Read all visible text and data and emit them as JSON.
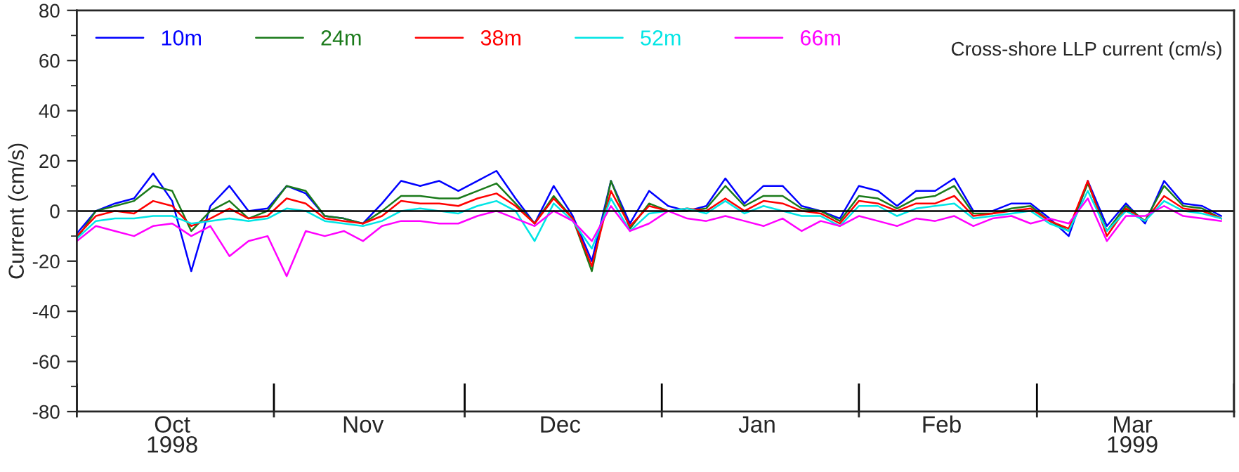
{
  "chart_data": {
    "type": "line",
    "annotations": [
      "Cross-shore LLP current (cm/s)"
    ],
    "ylabel": "Current (cm/s)",
    "x": [
      "1998-10-01",
      "1998-10-04",
      "1998-10-07",
      "1998-10-10",
      "1998-10-13",
      "1998-10-16",
      "1998-10-19",
      "1998-10-22",
      "1998-10-25",
      "1998-10-28",
      "1998-10-31",
      "1998-11-03",
      "1998-11-06",
      "1998-11-09",
      "1998-11-12",
      "1998-11-15",
      "1998-11-18",
      "1998-11-21",
      "1998-11-24",
      "1998-11-27",
      "1998-11-30",
      "1998-12-03",
      "1998-12-06",
      "1998-12-09",
      "1998-12-12",
      "1998-12-15",
      "1998-12-18",
      "1998-12-21",
      "1998-12-24",
      "1998-12-27",
      "1998-12-30",
      "1999-01-02",
      "1999-01-05",
      "1999-01-08",
      "1999-01-11",
      "1999-01-14",
      "1999-01-17",
      "1999-01-20",
      "1999-01-23",
      "1999-01-26",
      "1999-01-29",
      "1999-02-01",
      "1999-02-04",
      "1999-02-07",
      "1999-02-10",
      "1999-02-13",
      "1999-02-16",
      "1999-02-19",
      "1999-02-22",
      "1999-02-25",
      "1999-02-28",
      "1999-03-03",
      "1999-03-06",
      "1999-03-09",
      "1999-03-12",
      "1999-03-15",
      "1999-03-18",
      "1999-03-21",
      "1999-03-24",
      "1999-03-27",
      "1999-03-30"
    ],
    "series": [
      {
        "name": "10m",
        "color": "#0000ff",
        "values": [
          -9,
          0,
          3,
          5,
          15,
          4,
          -24,
          2,
          10,
          0,
          1,
          10,
          7,
          -2,
          -3,
          -5,
          3,
          12,
          10,
          12,
          8,
          12,
          16,
          5,
          -5,
          10,
          -2,
          -20,
          12,
          -5,
          8,
          2,
          0,
          2,
          13,
          3,
          10,
          10,
          2,
          0,
          -3,
          10,
          8,
          2,
          8,
          8,
          13,
          0,
          0,
          3,
          3,
          -3,
          -10,
          12,
          -6,
          3,
          -5,
          12,
          3,
          2,
          -2
        ]
      },
      {
        "name": "24m",
        "color": "#1a7a1a",
        "values": [
          -11,
          0,
          2,
          4,
          10,
          8,
          -8,
          0,
          4,
          -3,
          0,
          10,
          8,
          -2,
          -3,
          -5,
          0,
          6,
          6,
          5,
          5,
          8,
          11,
          3,
          -5,
          6,
          -3,
          -24,
          12,
          -7,
          3,
          0,
          0,
          1,
          10,
          2,
          6,
          6,
          1,
          0,
          -4,
          6,
          5,
          1,
          5,
          6,
          10,
          -1,
          -1,
          1,
          2,
          -4,
          -8,
          11,
          -8,
          2,
          -4,
          10,
          2,
          1,
          -3
        ]
      },
      {
        "name": "38m",
        "color": "#ff0000",
        "values": [
          -10,
          -2,
          0,
          -1,
          4,
          2,
          -6,
          -3,
          1,
          -3,
          -2,
          5,
          3,
          -3,
          -4,
          -5,
          -2,
          4,
          3,
          3,
          2,
          5,
          7,
          2,
          -5,
          5,
          -3,
          -22,
          8,
          -6,
          2,
          0,
          1,
          0,
          5,
          0,
          4,
          3,
          0,
          -1,
          -5,
          4,
          3,
          0,
          3,
          3,
          6,
          -2,
          -1,
          0,
          1,
          -4,
          -7,
          12,
          -10,
          1,
          -4,
          6,
          1,
          0,
          -3
        ]
      },
      {
        "name": "52m",
        "color": "#00e5e5",
        "values": [
          -11,
          -4,
          -3,
          -3,
          -2,
          -2,
          -5,
          -4,
          -3,
          -4,
          -3,
          1,
          0,
          -4,
          -5,
          -6,
          -4,
          0,
          1,
          0,
          -1,
          2,
          4,
          0,
          -12,
          3,
          -4,
          -15,
          5,
          -8,
          -1,
          0,
          1,
          -1,
          4,
          -1,
          2,
          0,
          -2,
          -2,
          -6,
          2,
          2,
          -2,
          1,
          2,
          3,
          -3,
          -2,
          -1,
          0,
          -5,
          -8,
          8,
          -8,
          0,
          -4,
          4,
          0,
          -1,
          -3
        ]
      },
      {
        "name": "66m",
        "color": "#ff00ff",
        "values": [
          -12,
          -6,
          -8,
          -10,
          -6,
          -5,
          -10,
          -6,
          -18,
          -12,
          -10,
          -26,
          -8,
          -10,
          -8,
          -12,
          -6,
          -4,
          -4,
          -5,
          -5,
          -2,
          0,
          -3,
          -6,
          0,
          -4,
          -12,
          2,
          -8,
          -5,
          0,
          -3,
          -4,
          -2,
          -4,
          -6,
          -3,
          -8,
          -4,
          -6,
          -2,
          -4,
          -6,
          -3,
          -4,
          -2,
          -6,
          -3,
          -2,
          -5,
          -3,
          -5,
          5,
          -12,
          -2,
          -2,
          2,
          -2,
          -3,
          -4
        ]
      }
    ],
    "xlim": [
      "1998-10-01",
      "1999-04-01"
    ],
    "xticks": [
      {
        "value": "1998-10-01",
        "label": null
      },
      {
        "value": "1998-11-01",
        "label": null
      },
      {
        "value": "1998-12-01",
        "label": null
      },
      {
        "value": "1999-01-01",
        "label": null
      },
      {
        "value": "1999-02-01",
        "label": null
      },
      {
        "value": "1999-03-01",
        "label": null
      },
      {
        "value": "1999-04-01",
        "label": null
      },
      {
        "value": "1998-10-16",
        "label": "Oct\n1998"
      },
      {
        "value": "1998-11-15",
        "label": "Nov"
      },
      {
        "value": "1998-12-16",
        "label": "Dec"
      },
      {
        "value": "1999-01-16",
        "label": "Jan"
      },
      {
        "value": "1999-02-14",
        "label": "Feb"
      },
      {
        "value": "1999-03-16",
        "label": "Mar\n1999"
      }
    ],
    "ylim": [
      -80,
      80
    ],
    "yticks": [
      -80,
      {
        "value": -70,
        "label": null
      },
      -60,
      {
        "value": -50,
        "label": null
      },
      -40,
      {
        "value": -30,
        "label": null
      },
      -20,
      {
        "value": -10,
        "label": null
      },
      0,
      {
        "value": 10,
        "label": null
      },
      20,
      {
        "value": 30,
        "label": null
      },
      40,
      {
        "value": 50,
        "label": null
      },
      60,
      {
        "value": 70,
        "label": null
      },
      80
    ],
    "ref_lines": [
      {
        "axis": "y",
        "value": 0,
        "color": "#000000"
      }
    ],
    "grid": false,
    "legend": "top left",
    "line_style": "solid",
    "marker": "none"
  }
}
